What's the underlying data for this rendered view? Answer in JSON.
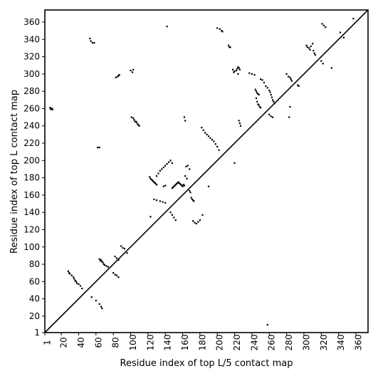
{
  "chart_data": {
    "type": "scatter",
    "title": "",
    "xlabel": "Residue index of top L/5 contact map",
    "ylabel": "Residue index of top L contact map",
    "xlim": [
      1,
      374
    ],
    "ylim": [
      1,
      374
    ],
    "x_ticks": [
      1,
      20,
      40,
      60,
      80,
      100,
      120,
      140,
      160,
      180,
      200,
      220,
      240,
      260,
      280,
      300,
      320,
      340,
      360
    ],
    "y_ticks": [
      1,
      20,
      40,
      60,
      80,
      100,
      120,
      140,
      160,
      180,
      200,
      220,
      240,
      260,
      280,
      300,
      320,
      340,
      360
    ],
    "grid": false,
    "legend": "none",
    "diagonal_line": {
      "from": [
        1,
        1
      ],
      "to": [
        374,
        374
      ],
      "color": "#000000"
    },
    "marker_color": "#000000",
    "series": [
      {
        "label_side": "upper-left (top L contacts)",
        "points": [
          [
            7,
            261
          ],
          [
            8,
            260
          ],
          [
            9,
            260
          ],
          [
            10,
            259
          ],
          [
            8,
            259
          ],
          [
            53,
            341
          ],
          [
            54,
            338
          ],
          [
            56,
            336
          ],
          [
            58,
            336
          ],
          [
            62,
            215
          ],
          [
            64,
            215
          ],
          [
            83,
            296
          ],
          [
            85,
            297
          ],
          [
            86,
            298
          ],
          [
            87,
            299
          ],
          [
            100,
            304
          ],
          [
            102,
            302
          ],
          [
            103,
            305
          ],
          [
            101,
            250
          ],
          [
            103,
            249
          ],
          [
            104,
            247
          ],
          [
            105,
            245
          ],
          [
            106,
            245
          ],
          [
            107,
            244
          ],
          [
            108,
            242
          ],
          [
            109,
            241
          ],
          [
            110,
            240
          ],
          [
            142,
            355
          ],
          [
            162,
            250
          ],
          [
            163,
            246
          ],
          [
            200,
            353
          ],
          [
            203,
            352
          ],
          [
            205,
            350
          ],
          [
            206,
            349
          ],
          [
            213,
            333
          ],
          [
            214,
            331
          ],
          [
            215,
            331
          ],
          [
            218,
            305
          ],
          [
            219,
            302
          ],
          [
            220,
            303
          ],
          [
            222,
            304
          ],
          [
            223,
            306
          ],
          [
            224,
            308
          ],
          [
            225,
            307
          ],
          [
            226,
            305
          ],
          [
            224,
            300
          ],
          [
            225,
            246
          ],
          [
            226,
            243
          ],
          [
            227,
            240
          ],
          [
            237,
            301
          ],
          [
            240,
            300
          ],
          [
            243,
            299
          ],
          [
            244,
            282
          ],
          [
            245,
            280
          ],
          [
            246,
            278
          ],
          [
            247,
            277
          ],
          [
            248,
            276
          ],
          [
            245,
            272
          ],
          [
            246,
            268
          ],
          [
            247,
            265
          ],
          [
            248,
            264
          ],
          [
            249,
            262
          ],
          [
            250,
            261
          ],
          [
            250,
            294
          ],
          [
            252,
            293
          ],
          [
            254,
            290
          ],
          [
            256,
            286
          ],
          [
            258,
            284
          ],
          [
            260,
            281
          ],
          [
            261,
            279
          ],
          [
            262,
            276
          ],
          [
            263,
            273
          ],
          [
            264,
            270
          ],
          [
            265,
            268
          ],
          [
            266,
            266
          ],
          [
            260,
            253
          ],
          [
            262,
            251
          ],
          [
            264,
            250
          ],
          [
            280,
            300
          ],
          [
            282,
            297
          ],
          [
            284,
            296
          ],
          [
            285,
            294
          ],
          [
            286,
            292
          ],
          [
            284,
            262
          ],
          [
            283,
            250
          ],
          [
            293,
            287
          ],
          [
            294,
            286
          ],
          [
            303,
            333
          ],
          [
            304,
            331
          ],
          [
            306,
            330
          ],
          [
            307,
            328
          ],
          [
            308,
            332
          ],
          [
            310,
            335
          ],
          [
            311,
            327
          ],
          [
            312,
            324
          ],
          [
            313,
            322
          ],
          [
            320,
            315
          ],
          [
            322,
            312
          ],
          [
            321,
            358
          ],
          [
            323,
            356
          ],
          [
            325,
            354
          ],
          [
            332,
            307
          ],
          [
            342,
            348
          ],
          [
            346,
            342
          ],
          [
            357,
            364
          ]
        ]
      },
      {
        "label_side": "lower-right (top L/5 contacts)",
        "points": [
          [
            28,
            72
          ],
          [
            29,
            70
          ],
          [
            30,
            69
          ],
          [
            32,
            67
          ],
          [
            34,
            65
          ],
          [
            35,
            63
          ],
          [
            36,
            61
          ],
          [
            37,
            60
          ],
          [
            38,
            58
          ],
          [
            40,
            57
          ],
          [
            42,
            55
          ],
          [
            44,
            52
          ],
          [
            55,
            42
          ],
          [
            60,
            38
          ],
          [
            64,
            34
          ],
          [
            66,
            31
          ],
          [
            67,
            29
          ],
          [
            64,
            86
          ],
          [
            65,
            84
          ],
          [
            66,
            85
          ],
          [
            67,
            83
          ],
          [
            68,
            82
          ],
          [
            69,
            80
          ],
          [
            70,
            79
          ],
          [
            72,
            78
          ],
          [
            74,
            77
          ],
          [
            80,
            70
          ],
          [
            82,
            68
          ],
          [
            84,
            67
          ],
          [
            86,
            65
          ],
          [
            82,
            89
          ],
          [
            84,
            87
          ],
          [
            86,
            85
          ],
          [
            89,
            101
          ],
          [
            91,
            99
          ],
          [
            93,
            98
          ],
          [
            96,
            93
          ],
          [
            122,
            181
          ],
          [
            123,
            179
          ],
          [
            124,
            178
          ],
          [
            125,
            177
          ],
          [
            126,
            176
          ],
          [
            127,
            175
          ],
          [
            128,
            174
          ],
          [
            129,
            173
          ],
          [
            130,
            172
          ],
          [
            127,
            155
          ],
          [
            130,
            154
          ],
          [
            134,
            153
          ],
          [
            137,
            152
          ],
          [
            140,
            151
          ],
          [
            123,
            135
          ],
          [
            130,
            182
          ],
          [
            132,
            185
          ],
          [
            134,
            188
          ],
          [
            136,
            190
          ],
          [
            138,
            192
          ],
          [
            140,
            194
          ],
          [
            142,
            196
          ],
          [
            144,
            198
          ],
          [
            146,
            200
          ],
          [
            148,
            197
          ],
          [
            138,
            170
          ],
          [
            140,
            171
          ],
          [
            148,
            168
          ],
          [
            149,
            169
          ],
          [
            150,
            170
          ],
          [
            151,
            171
          ],
          [
            152,
            172
          ],
          [
            153,
            173
          ],
          [
            154,
            174
          ],
          [
            155,
            175
          ],
          [
            156,
            174
          ],
          [
            157,
            173
          ],
          [
            158,
            172
          ],
          [
            159,
            171
          ],
          [
            160,
            170
          ],
          [
            161,
            172
          ],
          [
            162,
            171
          ],
          [
            146,
            140
          ],
          [
            148,
            137
          ],
          [
            150,
            134
          ],
          [
            152,
            131
          ],
          [
            164,
            193
          ],
          [
            166,
            194
          ],
          [
            168,
            190
          ],
          [
            163,
            182
          ],
          [
            165,
            179
          ],
          [
            168,
            165
          ],
          [
            169,
            163
          ],
          [
            170,
            157
          ],
          [
            171,
            155
          ],
          [
            172,
            154
          ],
          [
            173,
            153
          ],
          [
            172,
            130
          ],
          [
            174,
            128
          ],
          [
            176,
            127
          ],
          [
            178,
            129
          ],
          [
            180,
            131
          ],
          [
            183,
            137
          ],
          [
            182,
            238
          ],
          [
            184,
            235
          ],
          [
            186,
            232
          ],
          [
            188,
            230
          ],
          [
            190,
            228
          ],
          [
            192,
            226
          ],
          [
            194,
            224
          ],
          [
            196,
            222
          ],
          [
            198,
            219
          ],
          [
            200,
            216
          ],
          [
            202,
            212
          ],
          [
            190,
            170
          ],
          [
            220,
            197
          ],
          [
            258,
            10
          ]
        ]
      }
    ]
  }
}
